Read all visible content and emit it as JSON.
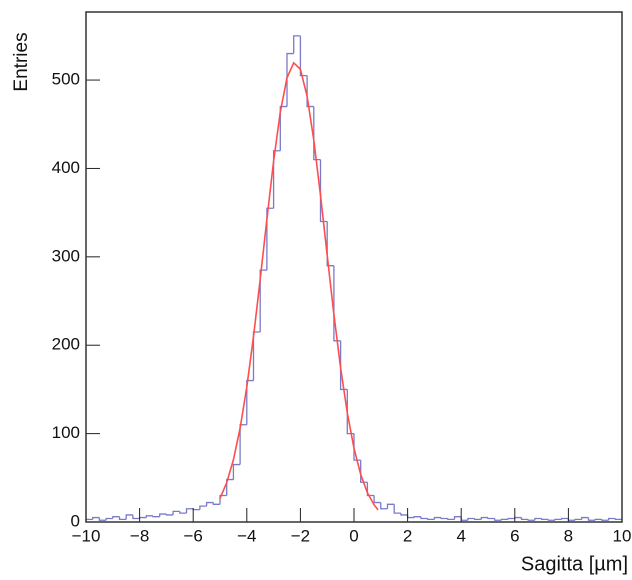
{
  "chart_data": {
    "type": "histogram",
    "xlabel": "Sagitta [µm]",
    "ylabel": "Entries",
    "bins": [
      -10,
      -9.75,
      -9.5,
      -9.25,
      -9,
      -8.75,
      -8.5,
      -8.25,
      -8,
      -7.75,
      -7.5,
      -7.25,
      -7,
      -6.75,
      -6.5,
      -6.25,
      -6,
      -5.75,
      -5.5,
      -5.25,
      -5,
      -4.75,
      -4.5,
      -4.25,
      -4,
      -3.75,
      -3.5,
      -3.25,
      -3,
      -2.75,
      -2.5,
      -2.25,
      -2,
      -1.75,
      -1.5,
      -1.25,
      -1,
      -0.75,
      -0.5,
      -0.25,
      0,
      0.25,
      0.5,
      0.75,
      1,
      1.25,
      1.5,
      1.75,
      2,
      2.25,
      2.5,
      2.75,
      3,
      3.25,
      3.5,
      3.75,
      4,
      4.25,
      4.5,
      4.75,
      5,
      5.25,
      5.5,
      5.75,
      6,
      6.25,
      6.5,
      6.75,
      7,
      7.25,
      7.5,
      7.75,
      8,
      8.25,
      8.5,
      8.75,
      9,
      9.25,
      9.5,
      9.75,
      10
    ],
    "counts": [
      3,
      5,
      2,
      4,
      6,
      3,
      8,
      4,
      5,
      7,
      6,
      9,
      8,
      12,
      10,
      15,
      14,
      18,
      22,
      20,
      30,
      48,
      65,
      110,
      160,
      215,
      285,
      355,
      420,
      470,
      530,
      550,
      505,
      470,
      410,
      340,
      290,
      205,
      150,
      100,
      70,
      45,
      30,
      22,
      15,
      20,
      10,
      8,
      5,
      6,
      4,
      3,
      5,
      4,
      3,
      6,
      2,
      4,
      3,
      5,
      4,
      2,
      3,
      4,
      5,
      3,
      2,
      4,
      3,
      2,
      3,
      4,
      2,
      3,
      5,
      2,
      3,
      2,
      4,
      3
    ],
    "color": "#7a7ac8",
    "fit": {
      "color": "#ff4d4d",
      "x": [
        -5,
        -4.75,
        -4.5,
        -4.25,
        -4,
        -3.75,
        -3.5,
        -3.25,
        -3,
        -2.75,
        -2.5,
        -2.25,
        -2,
        -1.75,
        -1.5,
        -1.25,
        -1,
        -0.75,
        -0.5,
        -0.25,
        0,
        0.25,
        0.5,
        0.75,
        0.9
      ],
      "y": [
        26.8,
        44.5,
        70.4,
        106.1,
        152.8,
        209.7,
        274.5,
        342.7,
        408.2,
        463.8,
        502.6,
        519.5,
        512.2,
        481.7,
        432.1,
        369.7,
        301.7,
        234.8,
        174.4,
        123.5,
        83.4,
        53.8,
        33.1,
        19.4,
        13.7
      ]
    },
    "xlim": [
      -10,
      10
    ],
    "ylim": [
      0,
      577
    ],
    "xticks": [
      {
        "value": -10,
        "label": "−10"
      },
      {
        "value": -8,
        "label": "−8"
      },
      {
        "value": -6,
        "label": "−6"
      },
      {
        "value": -4,
        "label": "−4"
      },
      {
        "value": -2,
        "label": "−2"
      },
      0,
      2,
      4,
      6,
      8,
      10
    ],
    "yticks": [
      0,
      100,
      200,
      300,
      400,
      500
    ]
  }
}
